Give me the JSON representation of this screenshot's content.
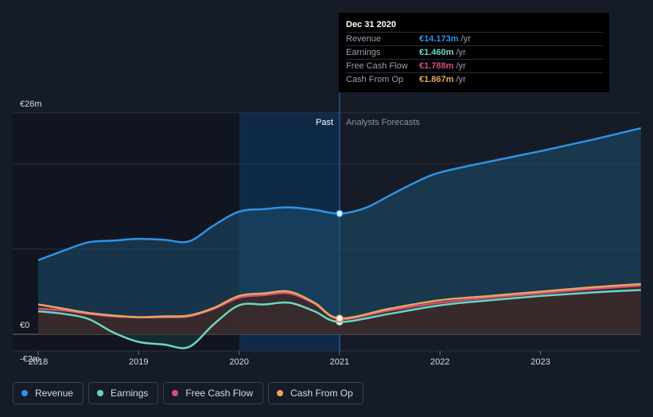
{
  "chart_data": {
    "type": "area",
    "currency_unit": "€m",
    "y_tick_labels": [
      {
        "value": 26,
        "label": "€26m"
      },
      {
        "value": 0,
        "label": "€0"
      },
      {
        "value": -2,
        "label": "-€2m"
      }
    ],
    "ylim": [
      -2,
      26
    ],
    "xlim": [
      2018,
      2024
    ],
    "x_tick_labels": [
      {
        "value": 2018,
        "label": "2018"
      },
      {
        "value": 2019,
        "label": "2019"
      },
      {
        "value": 2020,
        "label": "2020"
      },
      {
        "value": 2021,
        "label": "2021"
      },
      {
        "value": 2022,
        "label": "2022"
      },
      {
        "value": 2023,
        "label": "2023"
      }
    ],
    "gridlines_y": [
      26,
      20,
      10,
      0
    ],
    "past_label": "Past",
    "forecast_label": "Analysts Forecasts",
    "divider_x": 2021,
    "past_highlight_start": 2020,
    "dark_region_start": 2018,
    "series": [
      {
        "name": "Revenue",
        "key": "revenue",
        "color": "#2e93e6",
        "fill": "#1d4e6e",
        "points": [
          [
            2018,
            8.7
          ],
          [
            2018.25,
            9.8
          ],
          [
            2018.5,
            10.8
          ],
          [
            2018.75,
            11.0
          ],
          [
            2019,
            11.2
          ],
          [
            2019.25,
            11.1
          ],
          [
            2019.5,
            10.9
          ],
          [
            2019.75,
            12.8
          ],
          [
            2020,
            14.4
          ],
          [
            2020.25,
            14.7
          ],
          [
            2020.5,
            14.9
          ],
          [
            2020.75,
            14.6
          ],
          [
            2021,
            14.173
          ],
          [
            2021.25,
            14.8
          ],
          [
            2021.5,
            16.3
          ],
          [
            2021.75,
            17.8
          ],
          [
            2022,
            19.0
          ],
          [
            2022.5,
            20.3
          ],
          [
            2023,
            21.5
          ],
          [
            2023.5,
            22.8
          ],
          [
            2024,
            24.2
          ]
        ]
      },
      {
        "name": "Earnings",
        "key": "earnings",
        "color": "#6ad6c2",
        "fill": "#1a3a3c",
        "points": [
          [
            2018,
            2.7
          ],
          [
            2018.25,
            2.4
          ],
          [
            2018.5,
            1.8
          ],
          [
            2018.75,
            0.2
          ],
          [
            2019,
            -0.9
          ],
          [
            2019.25,
            -1.2
          ],
          [
            2019.5,
            -1.5
          ],
          [
            2019.75,
            1.2
          ],
          [
            2020,
            3.4
          ],
          [
            2020.25,
            3.5
          ],
          [
            2020.5,
            3.7
          ],
          [
            2020.75,
            2.7
          ],
          [
            2021,
            1.46
          ],
          [
            2021.5,
            2.4
          ],
          [
            2022,
            3.4
          ],
          [
            2022.5,
            4.0
          ],
          [
            2023,
            4.5
          ],
          [
            2023.5,
            4.9
          ],
          [
            2024,
            5.2
          ]
        ]
      },
      {
        "name": "Free Cash Flow",
        "key": "fcf",
        "color": "#d0507d",
        "fill": "#4a2233",
        "points": [
          [
            2018,
            3.0
          ],
          [
            2018.25,
            2.8
          ],
          [
            2018.5,
            2.4
          ],
          [
            2018.75,
            2.1
          ],
          [
            2019,
            2.0
          ],
          [
            2019.25,
            2.0
          ],
          [
            2019.5,
            2.1
          ],
          [
            2019.75,
            3.0
          ],
          [
            2020,
            4.3
          ],
          [
            2020.25,
            4.6
          ],
          [
            2020.5,
            4.8
          ],
          [
            2020.75,
            3.6
          ],
          [
            2021,
            1.788
          ],
          [
            2021.5,
            2.8
          ],
          [
            2022,
            3.7
          ],
          [
            2022.5,
            4.3
          ],
          [
            2023,
            4.8
          ],
          [
            2023.5,
            5.3
          ],
          [
            2024,
            5.7
          ]
        ]
      },
      {
        "name": "Cash From Op",
        "key": "cfo",
        "color": "#e8a55e",
        "fill": "#3a2c22",
        "points": [
          [
            2018,
            3.5
          ],
          [
            2018.25,
            3.0
          ],
          [
            2018.5,
            2.5
          ],
          [
            2018.75,
            2.2
          ],
          [
            2019,
            2.0
          ],
          [
            2019.25,
            2.1
          ],
          [
            2019.5,
            2.2
          ],
          [
            2019.75,
            3.1
          ],
          [
            2020,
            4.5
          ],
          [
            2020.25,
            4.8
          ],
          [
            2020.5,
            5.0
          ],
          [
            2020.75,
            3.7
          ],
          [
            2021,
            1.867
          ],
          [
            2021.5,
            3.0
          ],
          [
            2022,
            4.0
          ],
          [
            2022.5,
            4.5
          ],
          [
            2023,
            5.0
          ],
          [
            2023.5,
            5.5
          ],
          [
            2024,
            5.9
          ]
        ]
      }
    ]
  },
  "tooltip": {
    "date": "Dec 31 2020",
    "rows": [
      {
        "label": "Revenue",
        "value": "€14.173m",
        "unit": "/yr",
        "color": "#2e93e6"
      },
      {
        "label": "Earnings",
        "value": "€1.460m",
        "unit": "/yr",
        "color": "#6ad6c2"
      },
      {
        "label": "Free Cash Flow",
        "value": "€1.788m",
        "unit": "/yr",
        "color": "#d0507d"
      },
      {
        "label": "Cash From Op",
        "value": "€1.867m",
        "unit": "/yr",
        "color": "#e8a55e"
      }
    ]
  },
  "legend": [
    {
      "label": "Revenue",
      "color": "#2e93e6"
    },
    {
      "label": "Earnings",
      "color": "#6ad6c2"
    },
    {
      "label": "Free Cash Flow",
      "color": "#d0507d"
    },
    {
      "label": "Cash From Op",
      "color": "#e8a55e"
    }
  ]
}
